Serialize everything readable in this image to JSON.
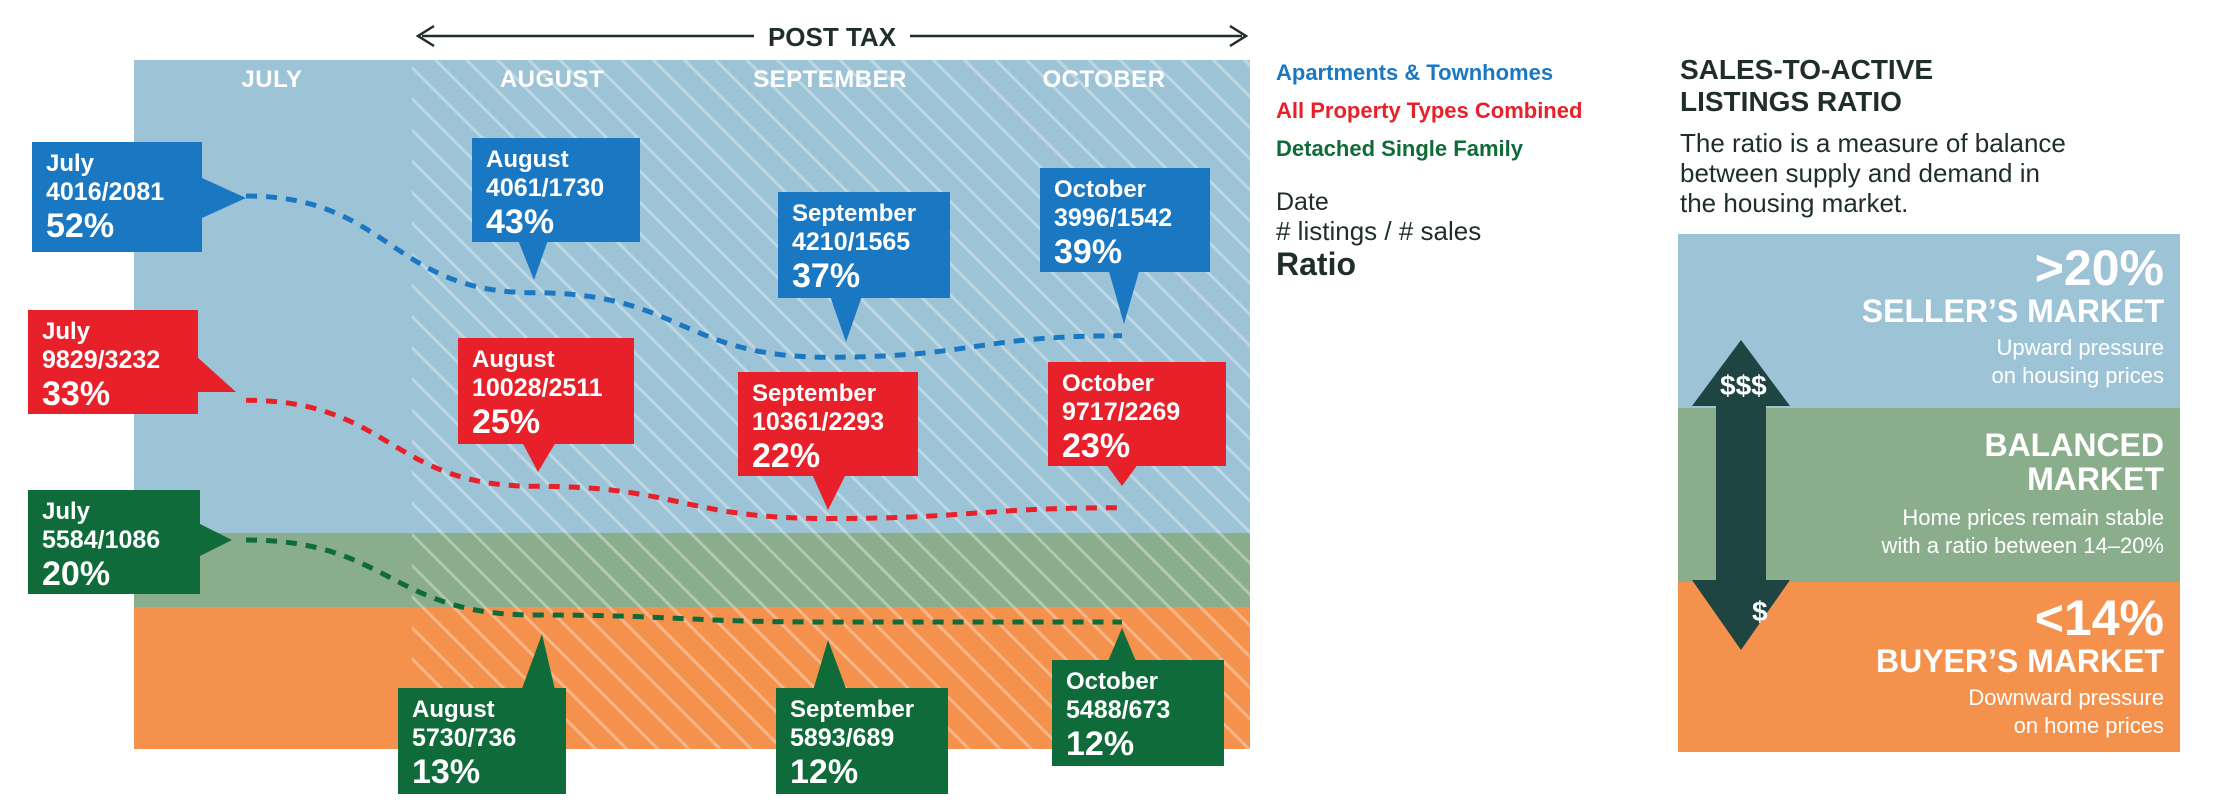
{
  "header": {
    "post_tax": "POST TAX"
  },
  "months": [
    "JULY",
    "AUGUST",
    "SEPTEMBER",
    "OCTOBER"
  ],
  "legend": [
    {
      "label": "Apartments & Townhomes",
      "color": "#1a78c2"
    },
    {
      "label": "All Property Types Combined",
      "color": "#e8202a"
    },
    {
      "label": "Detached Single Family",
      "color": "#0f6b3a"
    }
  ],
  "key": {
    "date": "Date",
    "counts": "# listings / # sales",
    "ratio": "Ratio"
  },
  "callouts": {
    "apt": [
      {
        "date": "July",
        "counts": "4016/2081",
        "pct": "52%"
      },
      {
        "date": "August",
        "counts": "4061/1730",
        "pct": "43%"
      },
      {
        "date": "September",
        "counts": "4210/1565",
        "pct": "37%"
      },
      {
        "date": "October",
        "counts": "3996/1542",
        "pct": "39%"
      }
    ],
    "all": [
      {
        "date": "July",
        "counts": "9829/3232",
        "pct": "33%"
      },
      {
        "date": "August",
        "counts": "10028/2511",
        "pct": "25%"
      },
      {
        "date": "September",
        "counts": "10361/2293",
        "pct": "22%"
      },
      {
        "date": "October",
        "counts": "9717/2269",
        "pct": "23%"
      }
    ],
    "det": [
      {
        "date": "July",
        "counts": "5584/1086",
        "pct": "20%"
      },
      {
        "date": "August",
        "counts": "5730/736",
        "pct": "13%"
      },
      {
        "date": "September",
        "counts": "5893/689",
        "pct": "12%"
      },
      {
        "date": "October",
        "counts": "5488/673",
        "pct": "12%"
      }
    ]
  },
  "chart_data": {
    "type": "line",
    "categories": [
      "July",
      "August",
      "September",
      "October"
    ],
    "series": [
      {
        "name": "Apartments & Townhomes",
        "values": [
          52,
          43,
          37,
          39
        ],
        "listings": [
          4016,
          4061,
          4210,
          3996
        ],
        "sales": [
          2081,
          1730,
          1565,
          1542
        ]
      },
      {
        "name": "All Property Types Combined",
        "values": [
          33,
          25,
          22,
          23
        ],
        "listings": [
          9829,
          10028,
          10361,
          9717
        ],
        "sales": [
          3232,
          2511,
          2293,
          2269
        ]
      },
      {
        "name": "Detached Single Family",
        "values": [
          20,
          13,
          12,
          12
        ],
        "listings": [
          5584,
          5730,
          5893,
          5488
        ],
        "sales": [
          1086,
          736,
          689,
          673
        ]
      }
    ],
    "bands": [
      {
        "label": "Seller's market",
        "from": 20,
        "color": "#9dc3d6"
      },
      {
        "label": "Balanced market",
        "from": 14,
        "to": 20,
        "color": "#8aad8c"
      },
      {
        "label": "Buyer's market",
        "to": 14,
        "color": "#f4914d"
      }
    ],
    "post_tax_months": [
      "August",
      "September",
      "October"
    ]
  },
  "panel": {
    "title_line1": "SALES-TO-ACTIVE",
    "title_line2": "LISTINGS RATIO",
    "desc_line1": "The ratio is a measure of balance",
    "desc_line2": "between supply and demand in",
    "desc_line3": "the housing market.",
    "seller": {
      "big": ">20%",
      "head": "SELLER’S MARKET",
      "sub1": "Upward pressure",
      "sub2": "on housing prices",
      "color": "#9dc3d6"
    },
    "balanced": {
      "head1": "BALANCED",
      "head2": "MARKET",
      "sub1": "Home prices remain stable",
      "sub2": "with a ratio between 14–20%",
      "color": "#8aad8c"
    },
    "buyer": {
      "big": "<14%",
      "head": "BUYER’S MARKET",
      "sub1": "Downward pressure",
      "sub2": "on home prices",
      "color": "#f4914d"
    },
    "arrow_up_label": "$$$",
    "arrow_down_label": "$",
    "arrow_color": "#1e4541"
  }
}
